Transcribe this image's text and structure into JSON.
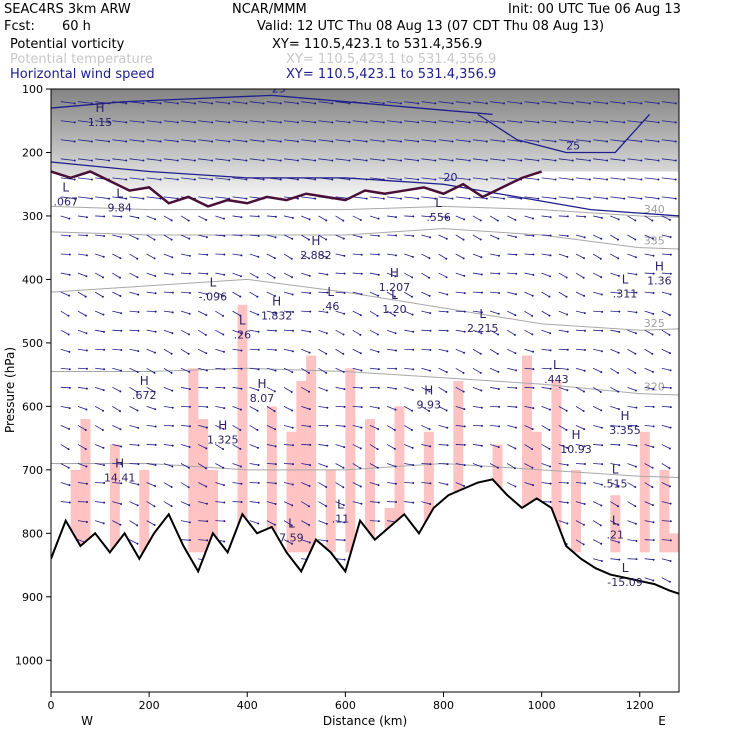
{
  "header": {
    "model": "SEAC4RS   3km ARW",
    "org": "NCAR/MMM",
    "init": "Init: 00 UTC Tue 06 Aug 13",
    "fcst_label": "Fcst:",
    "fcst_value": "60 h",
    "valid": "Valid: 12 UTC Thu 08 Aug 13 (07 CDT Thu 08 Aug 13)",
    "fields": [
      {
        "name": "Potential vorticity",
        "xy": "XY= 110.5,423.1 to 531.4,356.9",
        "color": "#000000"
      },
      {
        "name": "Potential temperature",
        "xy": "XY= 110.5,423.1 to 531.4,356.9",
        "color": "#c8c8c8"
      },
      {
        "name": "Horizontal wind speed",
        "xy": "XY= 110.5,423.1 to 531.4,356.9",
        "color": "#1e1e8c"
      }
    ]
  },
  "chart_data": {
    "type": "cross-section",
    "xlabel": "Distance (km)",
    "ylabel": "Pressure (hPa)",
    "xlim": [
      0,
      1280
    ],
    "ylim": [
      1050,
      100
    ],
    "x_ticks": [
      0,
      200,
      400,
      600,
      800,
      1000,
      1200
    ],
    "y_ticks": [
      100,
      200,
      300,
      400,
      500,
      600,
      700,
      800,
      900,
      1000
    ],
    "endpoints": {
      "left": "W",
      "right": "E"
    },
    "terrain": {
      "x": [
        0,
        30,
        60,
        90,
        120,
        150,
        180,
        210,
        240,
        270,
        300,
        330,
        360,
        390,
        420,
        450,
        480,
        510,
        540,
        570,
        600,
        630,
        660,
        690,
        720,
        750,
        780,
        810,
        840,
        870,
        900,
        930,
        960,
        990,
        1020,
        1050,
        1080,
        1110,
        1140,
        1170,
        1200,
        1230,
        1260,
        1280
      ],
      "p": [
        840,
        780,
        820,
        800,
        830,
        800,
        840,
        800,
        770,
        820,
        860,
        800,
        830,
        770,
        800,
        790,
        830,
        860,
        810,
        830,
        860,
        780,
        810,
        790,
        770,
        800,
        760,
        740,
        730,
        720,
        715,
        740,
        760,
        745,
        760,
        820,
        840,
        855,
        865,
        870,
        875,
        880,
        890,
        895
      ]
    },
    "potential_temperature_contours": [
      {
        "label": "325",
        "x": [
          0,
          200,
          400,
          600,
          800,
          1000,
          1200,
          1280
        ],
        "p": [
          420,
          410,
          400,
          420,
          445,
          470,
          480,
          478
        ]
      },
      {
        "label": "320",
        "x": [
          0,
          200,
          400,
          600,
          800,
          1000,
          1200,
          1280
        ],
        "p": [
          545,
          545,
          540,
          545,
          555,
          565,
          580,
          582
        ]
      },
      {
        "label": "335",
        "x": [
          0,
          200,
          400,
          600,
          800,
          1000,
          1200,
          1280
        ],
        "p": [
          325,
          330,
          330,
          330,
          320,
          330,
          350,
          352
        ]
      },
      {
        "label": "340",
        "x": [
          0,
          200,
          400,
          600,
          800,
          1000,
          1200,
          1280
        ],
        "p": [
          285,
          290,
          290,
          290,
          285,
          290,
          300,
          302
        ]
      },
      {
        "label": "",
        "x": [
          0,
          200,
          400,
          600,
          800,
          1000,
          1200,
          1280
        ],
        "p": [
          690,
          690,
          700,
          700,
          690,
          700,
          710,
          712
        ]
      }
    ],
    "wind_speed_contours": [
      {
        "label": "20",
        "x": [
          0,
          200,
          400,
          600,
          800,
          950,
          1100,
          1280
        ],
        "p": [
          215,
          230,
          240,
          240,
          250,
          270,
          290,
          300
        ]
      },
      {
        "label": "25",
        "x": [
          870,
          950,
          1050,
          1150,
          1220
        ],
        "p": [
          140,
          180,
          200,
          200,
          140
        ]
      },
      {
        "label": "25",
        "x": [
          0,
          150,
          300,
          450,
          600,
          750,
          900
        ],
        "p": [
          130,
          120,
          115,
          110,
          120,
          130,
          140
        ]
      }
    ],
    "pv_tropopause": {
      "x": [
        0,
        40,
        80,
        120,
        160,
        200,
        240,
        280,
        320,
        360,
        400,
        440,
        480,
        520,
        560,
        600,
        640,
        680,
        720,
        760,
        800,
        840,
        880,
        920,
        960,
        1000
      ],
      "p": [
        230,
        240,
        230,
        245,
        260,
        255,
        280,
        270,
        285,
        275,
        280,
        270,
        275,
        265,
        270,
        275,
        260,
        265,
        260,
        255,
        265,
        250,
        270,
        255,
        240,
        230
      ]
    },
    "extrema": [
      {
        "type": "H",
        "label": "1.15",
        "x": 100,
        "p": 155
      },
      {
        "type": "L",
        "label": ".067",
        "x": 30,
        "p": 280
      },
      {
        "type": "L",
        "label": "9.84",
        "x": 140,
        "p": 290
      },
      {
        "type": "H",
        "label": "2.882",
        "x": 540,
        "p": 365
      },
      {
        "type": "L",
        "label": ".556",
        "x": 790,
        "p": 305
      },
      {
        "type": "L",
        "label": "-.096",
        "x": 330,
        "p": 430
      },
      {
        "type": "H",
        "label": "1.832",
        "x": 460,
        "p": 460
      },
      {
        "type": "L",
        "label": ".46",
        "x": 570,
        "p": 445
      },
      {
        "type": "H",
        "label": "1.207",
        "x": 700,
        "p": 415
      },
      {
        "type": "L",
        "label": "1.20",
        "x": 700,
        "p": 450
      },
      {
        "type": "L",
        "label": ".26",
        "x": 390,
        "p": 490
      },
      {
        "type": "L",
        "label": "2.215",
        "x": 880,
        "p": 480
      },
      {
        "type": "L",
        "label": ".311",
        "x": 1170,
        "p": 425
      },
      {
        "type": "H",
        "label": "1.36",
        "x": 1240,
        "p": 405
      },
      {
        "type": "L",
        "label": ".443",
        "x": 1030,
        "p": 560
      },
      {
        "type": "H",
        "label": "8.07",
        "x": 430,
        "p": 590
      },
      {
        "type": "H",
        "label": ".672",
        "x": 190,
        "p": 585
      },
      {
        "type": "H",
        "label": "9.93",
        "x": 770,
        "p": 600
      },
      {
        "type": "H",
        "label": "3.355",
        "x": 1170,
        "p": 640
      },
      {
        "type": "H",
        "label": "1.325",
        "x": 350,
        "p": 655
      },
      {
        "type": "H",
        "label": "10.93",
        "x": 1070,
        "p": 670
      },
      {
        "type": "H",
        "label": "14.41",
        "x": 140,
        "p": 715
      },
      {
        "type": "L",
        "label": ".515",
        "x": 1150,
        "p": 725
      },
      {
        "type": "L",
        "label": ".21",
        "x": 1150,
        "p": 805
      },
      {
        "type": "L",
        "label": "7.59",
        "x": 490,
        "p": 810
      },
      {
        "type": "L",
        "label": ".11",
        "x": 590,
        "p": 780
      },
      {
        "type": "L",
        "label": "-15.09",
        "x": 1170,
        "p": 880
      }
    ]
  }
}
